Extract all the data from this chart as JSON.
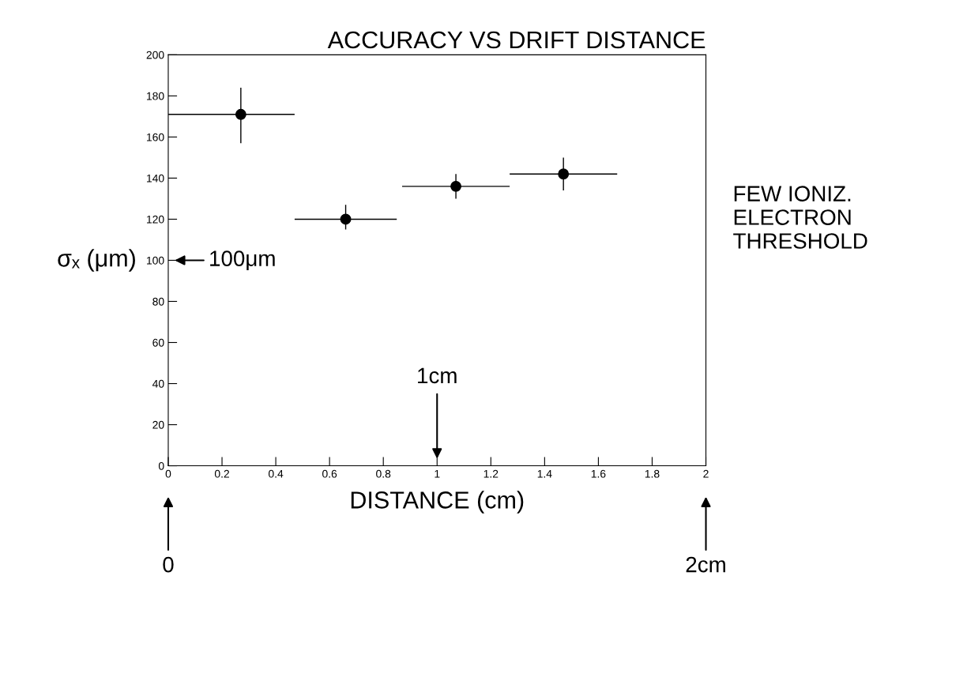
{
  "chart_data": {
    "type": "scatter",
    "title": "ACCURACY VS DRIFT DISTANCE",
    "xlabel": "DISTANCE (cm)",
    "ylabel": "σₓ (μm)",
    "x": [
      0.27,
      0.66,
      1.07,
      1.47
    ],
    "values": [
      171,
      120,
      136,
      142
    ],
    "color": "#000000",
    "errors": [
      [
        157,
        184
      ],
      [
        115,
        127
      ],
      [
        130,
        142
      ],
      [
        134,
        150
      ]
    ],
    "xerrors": [
      [
        0,
        0.47
      ],
      [
        0.47,
        0.85
      ],
      [
        0.87,
        1.27
      ],
      [
        1.27,
        1.67
      ]
    ],
    "marker": "circle",
    "xlim": [
      0,
      2
    ],
    "ylim": [
      0,
      200
    ],
    "xticks": [
      0,
      0.2,
      0.4,
      0.6,
      0.8,
      1,
      1.2,
      1.4,
      1.6,
      1.8,
      2
    ],
    "yticks": [
      0,
      20,
      40,
      60,
      80,
      100,
      120,
      140,
      160,
      180,
      200
    ],
    "annotations": [
      "100μm",
      "1cm",
      "0",
      "2cm",
      "FEW IONIZ.\nELECTRON\nTHRESHOLD"
    ]
  }
}
